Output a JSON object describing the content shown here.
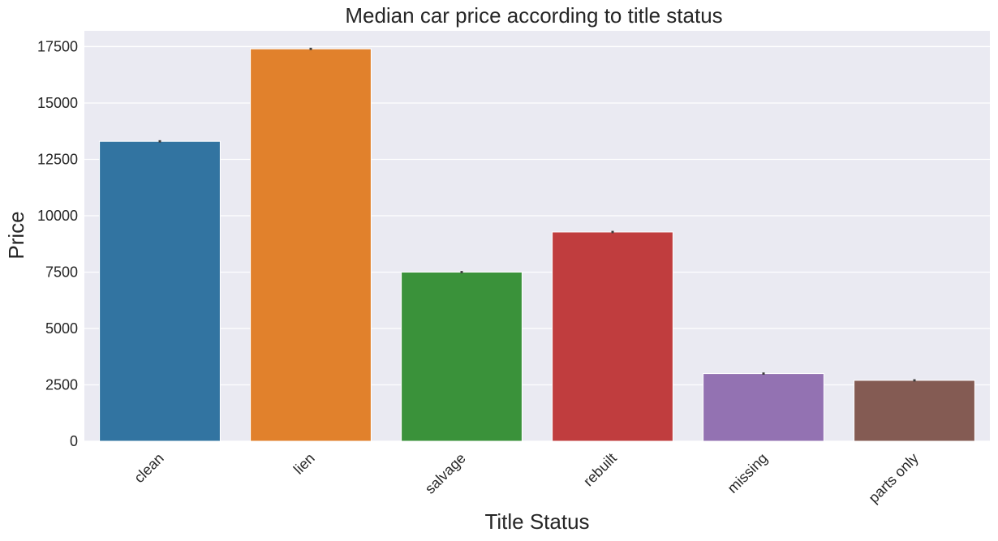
{
  "chart_data": {
    "type": "bar",
    "title": "Median car price according to title status",
    "xlabel": "Title Status",
    "ylabel": "Price",
    "categories": [
      "clean",
      "lien",
      "salvage",
      "rebuilt",
      "missing",
      "parts only"
    ],
    "values": [
      13300,
      17400,
      7500,
      9280,
      3000,
      2700
    ],
    "error_bars": [
      [
        13250,
        13350
      ],
      [
        17350,
        17450
      ],
      [
        7450,
        7550
      ],
      [
        9230,
        9330
      ],
      [
        2950,
        3050
      ],
      [
        2650,
        2750
      ]
    ],
    "ylim": [
      0,
      18200
    ],
    "yticks": [
      0,
      2500,
      5000,
      7500,
      10000,
      12500,
      15000,
      17500
    ],
    "ytick_labels": [
      "0",
      "2500",
      "5000",
      "7500",
      "10000",
      "12500",
      "15000",
      "17500"
    ],
    "colors": [
      "#3274a1",
      "#e1812c",
      "#3a923a",
      "#c03d3e",
      "#9372b2",
      "#845b53"
    ],
    "grid": true,
    "background": "#eaeaf2",
    "xtick_rotation": "45-degree"
  }
}
